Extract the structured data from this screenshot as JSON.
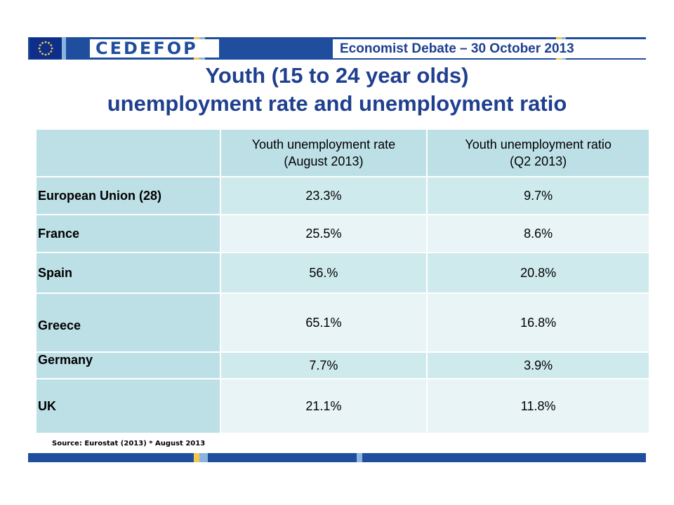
{
  "header": {
    "logo": "CEDEFOP",
    "event": "Economist Debate – 30 October 2013"
  },
  "title": {
    "line1": "Youth (15 to 24 year olds)",
    "line2": "unemployment rate and unemployment ratio"
  },
  "table": {
    "headers": {
      "corner": "",
      "col1_line1": "Youth unemployment rate",
      "col1_line2": "(August 2013)",
      "col2_line1": "Youth unemployment ratio",
      "col2_line2": "(Q2 2013)"
    },
    "rows": [
      {
        "country": "European Union (28)",
        "rate": "23.3%",
        "ratio": "9.7%"
      },
      {
        "country": "France",
        "rate": "25.5%",
        "ratio": "8.6%"
      },
      {
        "country": "Spain",
        "rate": "56.%",
        "ratio": "20.8%"
      },
      {
        "country": "Greece",
        "rate": "65.1%",
        "ratio": "16.8%"
      },
      {
        "country": "Germany",
        "rate": "7.7%",
        "ratio": "3.9%"
      },
      {
        "country": "UK",
        "rate": "21.1%",
        "ratio": "11.8%"
      }
    ]
  },
  "source": "Source: Eurostat (2013) * August 2013",
  "colors": {
    "brand_blue": "#1f4e9e",
    "title_blue": "#1f3f8f",
    "accent_yellow": "#f2c94c",
    "accent_lightblue": "#8ab4e0",
    "table_header": "#bde0e6",
    "table_row_dark": "#cfeaed",
    "table_row_light": "#e8f4f5"
  }
}
